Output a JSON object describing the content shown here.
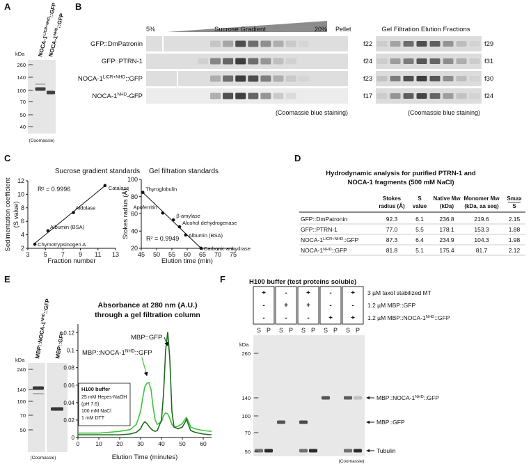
{
  "A": {
    "label": "A",
    "lanes": [
      {
        "text": "NOCA-1",
        "sup": "LICR+NHD",
        "tail": "::GFP"
      },
      {
        "text": "NOCA-1",
        "sup": "NHD",
        "tail": "::GFP"
      }
    ],
    "unit": "kDa",
    "markers": [
      260,
      140,
      100,
      70,
      50,
      40
    ],
    "note": "(Coomassie)"
  },
  "B": {
    "label": "B",
    "gradient": {
      "start": "5%",
      "title": "Sucrose Gradient",
      "end": "20%",
      "pellet": "Pellet"
    },
    "rows": [
      {
        "text": "GFP::DmPatronin"
      },
      {
        "text": "GFP::PTRN-1"
      },
      {
        "text": "NOCA-1",
        "sup": "LICR+NHD",
        "tail": "::GFP"
      },
      {
        "text": "NOCA-1",
        "sup": "NHD",
        "tail": "-GFP"
      }
    ],
    "note": "(Coomassie blue staining)",
    "gel_filtration": {
      "title": "Gel Filtration Elution Fractions",
      "ranges": [
        [
          "f22",
          "f29"
        ],
        [
          "f24",
          "f31"
        ],
        [
          "f23",
          "f30"
        ],
        [
          "f17",
          "f24"
        ]
      ],
      "note": "(Coomassie blue staining)"
    }
  },
  "C": {
    "label": "C",
    "charts": [
      {
        "type": "scatter",
        "title": "Sucrose gradient standards",
        "xlabel": "Fraction number",
        "ylabel": [
          "Sedimentation coefficient",
          "(S value)"
        ],
        "xlim": [
          3,
          13
        ],
        "xticks": [
          3,
          5,
          7,
          9,
          11,
          13
        ],
        "ylim": [
          2,
          12
        ],
        "yticks": [
          2,
          4,
          6,
          8,
          10,
          12
        ],
        "annotation": "R² = 0.9996",
        "labels": [
          "Chymotrypsinogen A",
          "Albumin (BSA)",
          "Aldolase",
          "Catalase"
        ],
        "x": [
          3.8,
          5.3,
          8.2,
          11.8
        ],
        "values": [
          2.6,
          4.6,
          7.3,
          11.3
        ]
      },
      {
        "type": "scatter",
        "title": "Gel filtration standards",
        "xlabel": "Elution time (min)",
        "ylabel": [
          "Stokes radius (Å)"
        ],
        "xlim": [
          45,
          75
        ],
        "xticks": [
          45,
          50,
          55,
          60,
          65,
          70,
          75
        ],
        "ylim": [
          20,
          100
        ],
        "yticks": [
          20,
          40,
          60,
          80,
          100
        ],
        "annotation": "R² = 0.9949",
        "labels": [
          "Thyroglobulin",
          "Apoferritin",
          "β-amylase",
          "Alcohol dehydrogenase",
          "Albumin (BSA)",
          "Carbonic anhydrase"
        ],
        "x": [
          45.5,
          52,
          55.5,
          57.5,
          59.5,
          64.5
        ],
        "values": [
          85,
          61,
          53,
          45,
          35.5,
          20.1
        ]
      }
    ]
  },
  "D": {
    "label": "D",
    "title": [
      "Hydrodynamic analysis for purified PTRN-1 and",
      "NOCA-1 fragments (500 mM NaCl)"
    ],
    "table": {
      "header": [
        [
          "Stokes",
          "radius (Å)"
        ],
        [
          "S",
          "value"
        ],
        [
          "Native Mw",
          "(kDa)"
        ],
        [
          "Monomer Mw",
          "(kDa, aa seq)"
        ],
        [
          "Smax",
          "S"
        ]
      ],
      "rows": [
        {
          "name": {
            "text": "GFP::DmPatronin"
          },
          "cells": [
            "92.3",
            "6.1",
            "236.8",
            "219.6",
            "2.15"
          ]
        },
        {
          "name": {
            "text": "GFP::PTRN-1"
          },
          "cells": [
            "77.0",
            "5.5",
            "178.1",
            "153.3",
            "1.88"
          ]
        },
        {
          "name": {
            "text": "NOCA-1",
            "sup": "LICR+NHD",
            "tail": "::GFP"
          },
          "cells": [
            "87.3",
            "6.4",
            "234.9",
            "104.3",
            "1.98"
          ]
        },
        {
          "name": {
            "text": "NOCA-1",
            "sup": "NHD",
            "tail": "::GFP"
          },
          "cells": [
            "81.8",
            "5.1",
            "175.4",
            "81.7",
            "2.12"
          ]
        }
      ]
    }
  },
  "E": {
    "label": "E",
    "lanes": [
      {
        "text": "MBP::NOCA-1",
        "sup": "NHD",
        "tail": "::GFP"
      },
      {
        "text": "MBP::GFP"
      }
    ],
    "unit": "kDa",
    "markers": [
      240,
      140,
      100,
      70,
      50
    ],
    "note": "(Coomassie)",
    "chart": {
      "type": "line",
      "title": [
        "Absorbance at 280 nm (A.U.)",
        "through a gel filtration column"
      ],
      "xlabel": "Elution Time (minutes)",
      "xlim": [
        0,
        64
      ],
      "xticks": [
        0,
        10,
        20,
        30,
        40,
        50,
        60
      ],
      "ylim": [
        0,
        0.13
      ],
      "yticks": [
        0,
        0.02,
        0.04,
        0.06,
        0.08,
        0.1,
        0.12
      ],
      "x": [
        0,
        5,
        10,
        15,
        20,
        25,
        28,
        30,
        31,
        32,
        33,
        34,
        35,
        36,
        37,
        38,
        40,
        41,
        42,
        43,
        44,
        45,
        46,
        48,
        50,
        51,
        52,
        53,
        54,
        56,
        60,
        64
      ],
      "series": [
        {
          "name": {
            "text": "MBP::GFP"
          },
          "color": "#1e6a1e",
          "values": [
            0.003,
            0.003,
            0.003,
            0.003,
            0.003,
            0.004,
            0.006,
            0.01,
            0.015,
            0.018,
            0.016,
            0.013,
            0.01,
            0.008,
            0.007,
            0.008,
            0.02,
            0.05,
            0.1,
            0.121,
            0.09,
            0.03,
            0.012,
            0.01,
            0.012,
            0.016,
            0.021,
            0.014,
            0.008,
            0.006,
            0.004,
            0.003
          ]
        },
        {
          "name": {
            "text": "MBP::NOCA-1",
            "sup": "NHD",
            "tail": "::GFP"
          },
          "color": "#3cc43c",
          "values": [
            0.005,
            0.005,
            0.005,
            0.006,
            0.007,
            0.009,
            0.015,
            0.03,
            0.045,
            0.058,
            0.062,
            0.063,
            0.055,
            0.035,
            0.02,
            0.015,
            0.018,
            0.025,
            0.028,
            0.027,
            0.022,
            0.015,
            0.012,
            0.013,
            0.016,
            0.02,
            0.023,
            0.018,
            0.012,
            0.01,
            0.008,
            0.007
          ]
        }
      ],
      "buffer": {
        "title": "H100 buffer",
        "lines": [
          "25 mM Hepes-NaOH",
          "(pH 7.6)",
          "100 mM NaCl",
          "1 mM DTT"
        ]
      }
    }
  },
  "F": {
    "label": "F",
    "title": "H100 buffer (test proteins soluble)",
    "conditions": [
      [
        "+",
        "-",
        "-"
      ],
      [
        "-",
        "+",
        "-"
      ],
      [
        "+",
        "+",
        "-"
      ],
      [
        "-",
        "-",
        "+"
      ],
      [
        "+",
        "-",
        "+"
      ]
    ],
    "condition_labels": [
      {
        "text": "3 µM taxol stabilized MT"
      },
      {
        "text": "1.2 µM MBP::GFP"
      },
      {
        "text": "1.2 µM MBP::NOCA-1",
        "sup": "NHD",
        "tail": "::GFP"
      }
    ],
    "fractions": [
      "S",
      "P"
    ],
    "unit": "kDa",
    "markers": [
      260,
      140,
      100,
      70,
      50
    ],
    "bands": [
      {
        "text": "MBP::NOCA-1",
        "sup": "NHD",
        "tail": "::GFP"
      },
      {
        "text": "MBP::GFP"
      },
      {
        "text": "Tubulin"
      }
    ],
    "note": "(Coomassie)"
  }
}
